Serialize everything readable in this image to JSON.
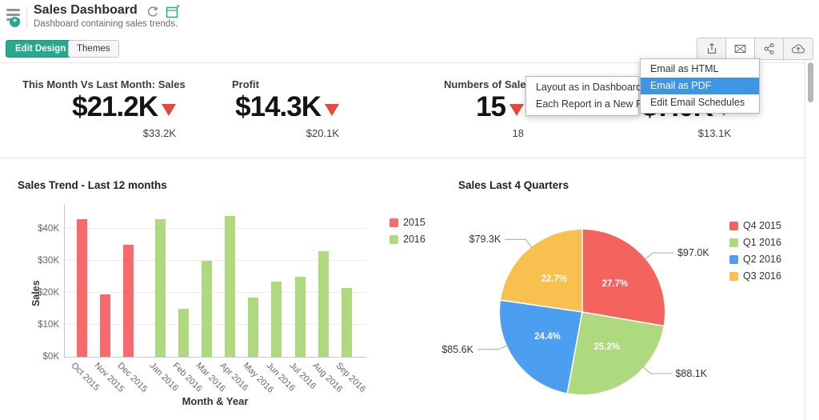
{
  "header": {
    "title": "Sales Dashboard",
    "subtitle": "Dashboard containing sales trends."
  },
  "toolbar": {
    "edit_design_label": "Edit Design",
    "themes_label": "Themes",
    "action_icons": [
      "export-icon",
      "email-icon",
      "share-icon",
      "cloud-upload-icon"
    ]
  },
  "menus": {
    "email_menu": {
      "items": [
        {
          "label": "Email as HTML",
          "highlighted": false
        },
        {
          "label": "Email as PDF",
          "highlighted": true
        },
        {
          "label": "Edit Email Schedules",
          "highlighted": false
        }
      ]
    },
    "layout_submenu": {
      "items": [
        {
          "label": "Layout as in Dashboard",
          "highlighted": false
        },
        {
          "label": "Each Report in a New Page",
          "highlighted": false
        }
      ]
    }
  },
  "kpis": [
    {
      "title": "This Month Vs Last Month: Sales",
      "value": "$21.2K",
      "trend": "down",
      "previous": "$33.2K"
    },
    {
      "title": "Profit",
      "value": "$14.3K",
      "trend": "down",
      "previous": "$20.1K"
    },
    {
      "title": "Numbers of Sale",
      "value": "15",
      "trend": "down",
      "previous": "18"
    },
    {
      "title": "",
      "value": "$7.0K",
      "trend": "down",
      "previous": "$13.1K"
    }
  ],
  "chart_data": [
    {
      "type": "bar",
      "title": "Sales Trend - Last 12 months",
      "categories": [
        "Oct 2015",
        "Nov 2015",
        "Dec 2015",
        "Jan 2016",
        "Feb 2016",
        "Mar 2016",
        "Apr 2016",
        "May 2016",
        "Jun 2016",
        "Jul 2016",
        "Aug 2016",
        "Sep 2016"
      ],
      "series": [
        {
          "name": "2015",
          "color": "#f7696a",
          "values": [
            43000,
            19500,
            35000,
            null,
            null,
            null,
            null,
            null,
            null,
            null,
            null,
            null
          ]
        },
        {
          "name": "2016",
          "color": "#aed97e",
          "values": [
            null,
            null,
            null,
            43000,
            15000,
            30000,
            44000,
            18500,
            23500,
            25000,
            33000,
            21500
          ]
        }
      ],
      "xlabel": "Month & Year",
      "ylabel": "Sales",
      "ylim": [
        0,
        47000
      ],
      "yticks": [
        {
          "value": 0,
          "label": "$0K"
        },
        {
          "value": 10000,
          "label": "$10K"
        },
        {
          "value": 20000,
          "label": "$20K"
        },
        {
          "value": 30000,
          "label": "$30K"
        },
        {
          "value": 40000,
          "label": "$40K"
        }
      ],
      "grid": true,
      "legend_position": "right"
    },
    {
      "type": "pie",
      "title": "Sales Last 4 Quarters",
      "slices": [
        {
          "label": "Q4 2015",
          "percent": 27.7,
          "value": "$97.0K",
          "color": "#f4635e"
        },
        {
          "label": "Q1 2016",
          "percent": 25.2,
          "value": "$88.1K",
          "color": "#aed97e"
        },
        {
          "label": "Q2 2016",
          "percent": 24.4,
          "value": "$85.6K",
          "color": "#4c9ff0"
        },
        {
          "label": "Q3 2016",
          "percent": 22.7,
          "value": "$79.3K",
          "color": "#f7c04f"
        }
      ],
      "legend_position": "right"
    }
  ],
  "colors": {
    "accent_teal": "#29a98b",
    "menu_highlight": "#3d95e4",
    "trend_down_red": "#e8473b",
    "connector_gray": "#b5b5b5"
  }
}
